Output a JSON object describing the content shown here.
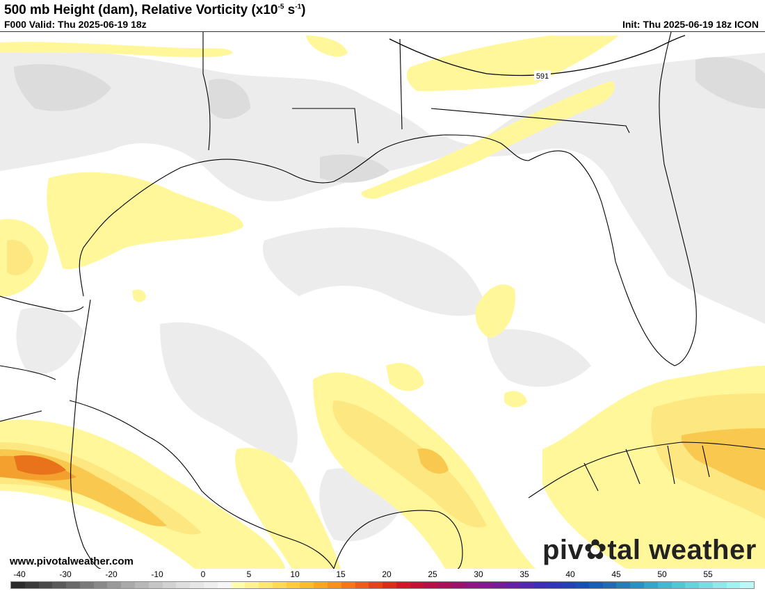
{
  "header": {
    "title_main": "500 mb Height (dam), Relative Vorticity (x10",
    "title_exp1": "-5",
    "title_mid": " s",
    "title_exp2": "-1",
    "title_end": ")",
    "valid": "F000 Valid: Thu 2025-06-19 18z",
    "init": "Init: Thu 2025-06-19 18z ICON"
  },
  "map": {
    "contour_label": "591",
    "colors": {
      "land_border": "#000000",
      "neg_light": "#ececec",
      "neg_mid": "#dcdcdc",
      "pos_1": "#fff79a",
      "pos_2": "#fde780",
      "pos_3": "#f9c94f",
      "pos_4": "#f4a02e",
      "pos_5": "#e8731a"
    }
  },
  "footer": {
    "url": "www.pivotalweather.com",
    "brand_left": "piv",
    "brand_right": "tal weather"
  },
  "colorbar": {
    "tick_labels": [
      "-40",
      "-30",
      "-20",
      "-10",
      "0",
      "5",
      "10",
      "15",
      "20",
      "25",
      "30",
      "35",
      "40",
      "45",
      "50",
      "55"
    ],
    "colors": [
      "#2b2b2b",
      "#3a3a3a",
      "#4a4a4a",
      "#5a5a5a",
      "#6a6a6a",
      "#7a7a7a",
      "#8a8a8a",
      "#9a9a9a",
      "#aaaaaa",
      "#b8b8b8",
      "#c6c6c6",
      "#d2d2d2",
      "#dddddd",
      "#e6e6e6",
      "#eeeeee",
      "#f6f6f6",
      "#fffbb0",
      "#fff38a",
      "#ffe96a",
      "#ffdb50",
      "#ffcc3a",
      "#ffbb2a",
      "#ffa51e",
      "#ff8e18",
      "#f97514",
      "#f05c14",
      "#e64418",
      "#dc2c1e",
      "#d01828",
      "#c41236",
      "#b80f46",
      "#ac0f58",
      "#a0106a",
      "#92147c",
      "#84188e",
      "#741c9e",
      "#6420ac",
      "#5226b6",
      "#402cbc",
      "#3034be",
      "#243ebe",
      "#1c4cbc",
      "#1a5cba",
      "#1c6cba",
      "#2080bc",
      "#2694c0",
      "#30a8c6",
      "#3cbccc",
      "#4ccad4",
      "#5ed6dc",
      "#74e0e4",
      "#8ceaea",
      "#a4f0f0",
      "#bcf6f6"
    ]
  }
}
